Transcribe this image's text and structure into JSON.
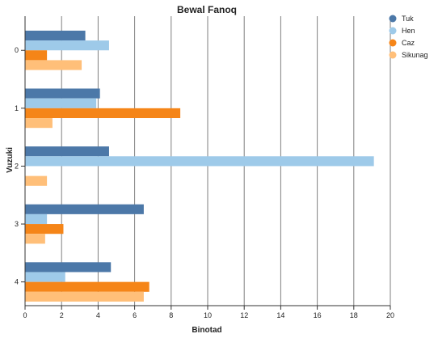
{
  "chart_data": {
    "type": "bar",
    "orientation": "horizontal",
    "title": "Bewal Fanoq",
    "xlabel": "Binotad",
    "ylabel": "Vuzuki",
    "categories": [
      "0",
      "1",
      "2",
      "3",
      "4"
    ],
    "xlim": [
      0,
      20
    ],
    "x_ticks": [
      "0",
      "2",
      "4",
      "6",
      "8",
      "10",
      "12",
      "14",
      "16",
      "18",
      "20"
    ],
    "grid": "vertical",
    "legend_position": "top-right",
    "series": [
      {
        "name": "Tuk",
        "color": "#4c78a8",
        "values": [
          3.3,
          4.1,
          4.6,
          6.5,
          4.7
        ]
      },
      {
        "name": "Hen",
        "color": "#9ecae9",
        "values": [
          4.6,
          3.9,
          19.1,
          1.2,
          2.2
        ]
      },
      {
        "name": "Caz",
        "color": "#f58518",
        "values": [
          1.2,
          8.5,
          0,
          2.1,
          6.8
        ]
      },
      {
        "name": "Sikunag",
        "color": "#ffbf79",
        "values": [
          3.1,
          1.5,
          1.2,
          1.1,
          6.5
        ]
      }
    ]
  }
}
